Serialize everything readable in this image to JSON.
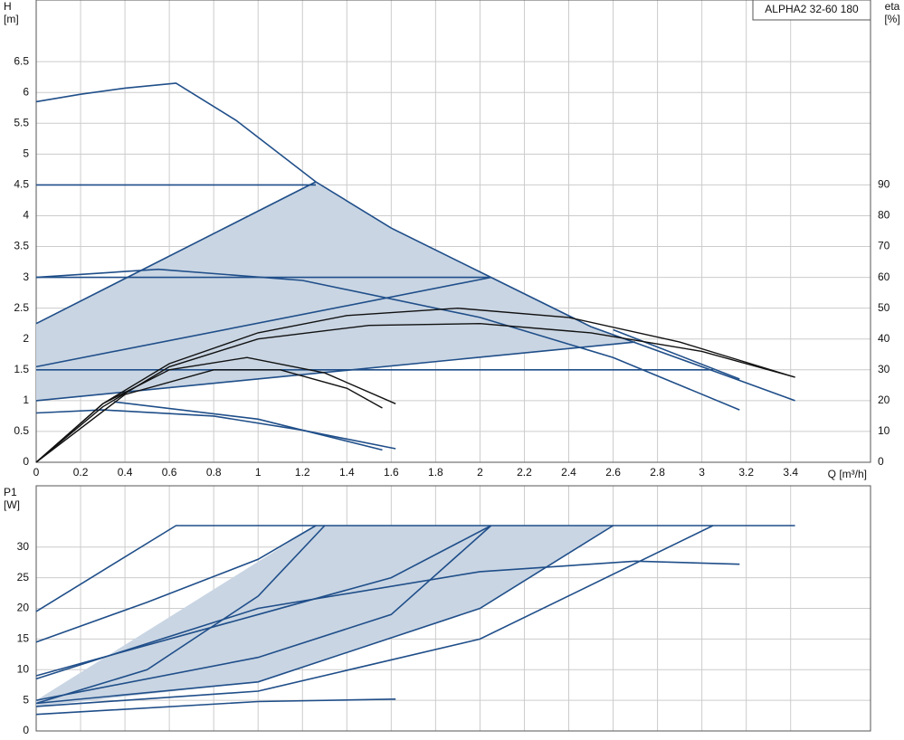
{
  "chart_data": [
    {
      "type": "line",
      "annotation": "ALPHA2 32-60 180",
      "ylabel": "H",
      "yunit": "[m]",
      "y2label": "eta",
      "y2unit": "[%]",
      "xlabel": "Q [m³/h]",
      "xlim": [
        0,
        3.76
      ],
      "xticks": [
        0,
        0.2,
        0.4,
        0.6,
        0.8,
        1.0,
        1.2,
        1.4,
        1.6,
        1.8,
        2.0,
        2.2,
        2.4,
        2.6,
        2.8,
        3.0,
        3.2,
        3.4
      ],
      "ylim": [
        0,
        7.5
      ],
      "yticks": [
        0,
        0.5,
        1.0,
        1.5,
        2.0,
        2.5,
        3.0,
        3.5,
        4.0,
        4.5,
        5.0,
        5.5,
        6.0,
        6.5
      ],
      "y2lim": [
        0,
        150
      ],
      "y2ticks": [
        0,
        10,
        20,
        30,
        40,
        50,
        60,
        70,
        80,
        90
      ],
      "grid": true,
      "series": [
        {
          "color": "#1f4e89",
          "fill": "#c9d5e3",
          "x": [
            0,
            0,
            1.26,
            1.6,
            2.05,
            2.5,
            2.7
          ],
          "values": [
            1.0,
            2.25,
            4.55,
            3.8,
            3.0,
            2.2,
            1.95
          ]
        },
        {
          "color": "#1f4e89",
          "x": [
            0,
            0.2,
            0.4,
            0.63,
            0.9,
            1.26,
            1.6,
            2.05,
            2.5,
            3.0,
            3.42
          ],
          "values": [
            5.85,
            5.97,
            6.07,
            6.15,
            5.55,
            4.55,
            3.8,
            3.0,
            2.2,
            1.55,
            1.0
          ]
        },
        {
          "color": "#1f4e89",
          "x": [
            0,
            1.26
          ],
          "values": [
            4.5,
            4.5
          ]
        },
        {
          "color": "#1f4e89",
          "x": [
            0,
            2.05
          ],
          "values": [
            3.0,
            3.0
          ]
        },
        {
          "color": "#1f4e89",
          "x": [
            0,
            3.05
          ],
          "values": [
            1.5,
            1.5
          ]
        },
        {
          "color": "#1f4e89",
          "x": [
            0,
            1.26
          ],
          "values": [
            2.25,
            4.55
          ]
        },
        {
          "color": "#1f4e89",
          "x": [
            0,
            2.05
          ],
          "values": [
            1.55,
            3.0
          ]
        },
        {
          "color": "#1f4e89",
          "x": [
            0,
            2.7
          ],
          "values": [
            1.0,
            1.95
          ]
        },
        {
          "color": "#1f4e89",
          "x": [
            2.6,
            3.17
          ],
          "values": [
            2.15,
            1.35
          ]
        },
        {
          "color": "#1f4e89",
          "x": [
            0,
            0.55,
            1.2,
            2.0,
            2.6,
            3.17
          ],
          "values": [
            3.0,
            3.13,
            2.95,
            2.35,
            1.7,
            0.85
          ]
        },
        {
          "color": "#1f4e89",
          "x": [
            0,
            0.3,
            0.8,
            1.2,
            1.62
          ],
          "values": [
            0.8,
            0.85,
            0.75,
            0.52,
            0.22
          ]
        },
        {
          "color": "#1f4e89",
          "x": [
            0.35,
            1.0,
            1.56
          ],
          "values": [
            0.98,
            0.7,
            0.2
          ]
        },
        {
          "color": "#111111",
          "x": [
            0,
            0.3,
            0.6,
            1.0,
            1.4,
            1.9,
            2.4,
            2.9,
            3.42
          ],
          "values": [
            0,
            0.95,
            1.6,
            2.1,
            2.38,
            2.5,
            2.35,
            1.95,
            1.38
          ]
        },
        {
          "color": "#111111",
          "x": [
            0,
            0.3,
            0.6,
            1.0,
            1.5,
            2.0,
            2.5,
            3.0,
            3.42
          ],
          "values": [
            0,
            0.9,
            1.55,
            2.0,
            2.22,
            2.25,
            2.1,
            1.8,
            1.38
          ]
        },
        {
          "color": "#111111",
          "x": [
            0,
            0.3,
            0.6,
            0.95,
            1.3,
            1.62
          ],
          "values": [
            0,
            0.95,
            1.5,
            1.7,
            1.45,
            0.95
          ]
        },
        {
          "color": "#111111",
          "x": [
            0,
            0.4,
            0.8,
            1.1,
            1.4,
            1.56
          ],
          "values": [
            0,
            1.1,
            1.5,
            1.5,
            1.2,
            0.88
          ]
        }
      ]
    },
    {
      "type": "line",
      "ylabel": "P1",
      "yunit": "[W]",
      "xlim": [
        0,
        3.76
      ],
      "xticks": [
        0,
        0.2,
        0.4,
        0.6,
        0.8,
        1.0,
        1.2,
        1.4,
        1.6,
        1.8,
        2.0,
        2.2,
        2.4,
        2.6,
        2.8,
        3.0,
        3.2,
        3.4
      ],
      "xtick_labels": false,
      "ylim": [
        0,
        40
      ],
      "yticks": [
        0,
        5,
        10,
        15,
        20,
        25,
        30
      ],
      "grid": true,
      "series": [
        {
          "color": "#1f4e89",
          "fill": "#c9d5e3",
          "x": [
            0,
            1.26,
            2.6,
            2.0,
            1.0,
            0
          ],
          "values": [
            5,
            33.5,
            33.5,
            20,
            8,
            4
          ]
        },
        {
          "color": "#1f4e89",
          "x": [
            0,
            0.63,
            3.42
          ],
          "values": [
            19.5,
            33.5,
            33.5
          ]
        },
        {
          "color": "#1f4e89",
          "x": [
            0,
            0.5,
            1.0,
            1.26
          ],
          "values": [
            14.5,
            21,
            28,
            33.5
          ]
        },
        {
          "color": "#1f4e89",
          "x": [
            0,
            0.5,
            1.0,
            1.3
          ],
          "values": [
            4.5,
            10,
            22,
            33.5
          ]
        },
        {
          "color": "#1f4e89",
          "x": [
            0,
            1.0,
            1.6,
            2.05
          ],
          "values": [
            9,
            19,
            25,
            33.5
          ]
        },
        {
          "color": "#1f4e89",
          "x": [
            0,
            1.0,
            1.6,
            2.05
          ],
          "values": [
            5,
            12,
            19,
            33.5
          ]
        },
        {
          "color": "#1f4e89",
          "x": [
            0,
            1.0,
            2.0,
            2.6
          ],
          "values": [
            4.5,
            8,
            20,
            33.5
          ]
        },
        {
          "color": "#1f4e89",
          "x": [
            0,
            1.0,
            2.0,
            3.05
          ],
          "values": [
            4,
            6.5,
            15,
            33.5
          ]
        },
        {
          "color": "#1f4e89",
          "x": [
            0,
            1.0,
            2.0,
            2.7,
            3.17
          ],
          "values": [
            8.5,
            20,
            26,
            27.7,
            27.2
          ]
        },
        {
          "color": "#1f4e89",
          "x": [
            0,
            1.0,
            1.62
          ],
          "values": [
            2.7,
            4.8,
            5.2
          ]
        }
      ]
    }
  ]
}
